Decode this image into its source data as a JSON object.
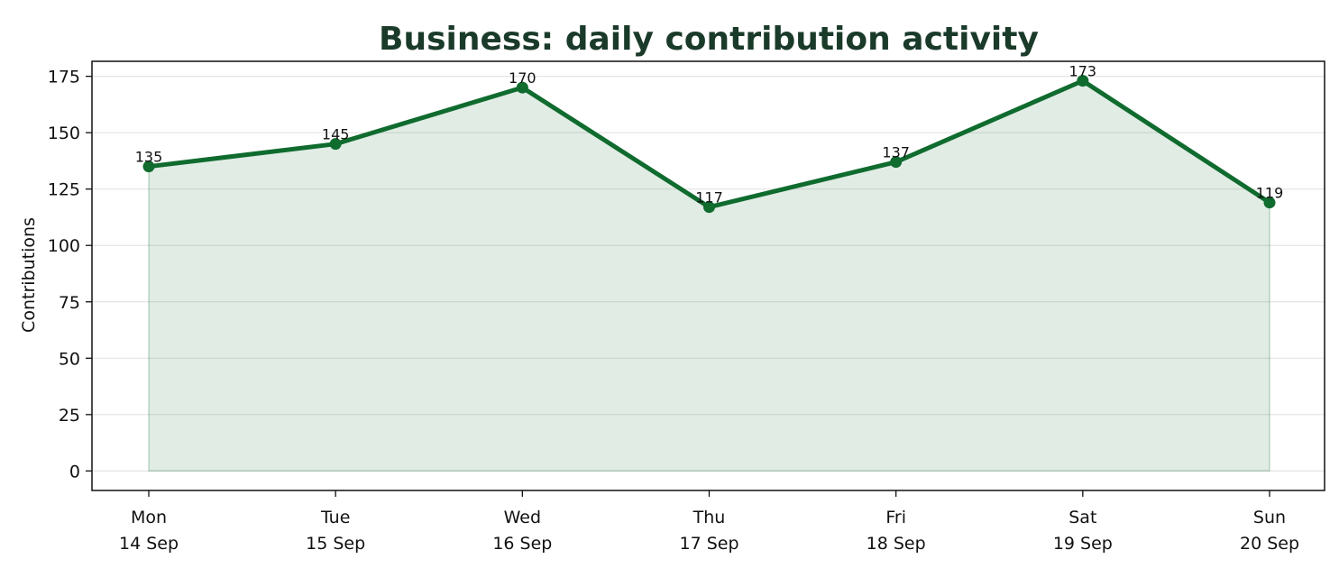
{
  "chart_data": {
    "type": "area",
    "title": "Business: daily contribution activity",
    "xlabel": "",
    "ylabel": "Contributions",
    "categories": [
      [
        "Mon",
        "14 Sep"
      ],
      [
        "Tue",
        "15 Sep"
      ],
      [
        "Wed",
        "16 Sep"
      ],
      [
        "Thu",
        "17 Sep"
      ],
      [
        "Fri",
        "18 Sep"
      ],
      [
        "Sat",
        "19 Sep"
      ],
      [
        "Sun",
        "20 Sep"
      ]
    ],
    "series": [
      {
        "values": [
          135,
          145,
          170,
          117,
          137,
          173,
          119
        ]
      }
    ],
    "ylim": [
      -8.65,
      181.65
    ],
    "yticks": [
      0,
      25,
      50,
      75,
      100,
      125,
      150,
      175
    ],
    "grid": "horizontal",
    "legend": "none",
    "data_labels": true
  },
  "colors": {
    "line": "#0f6b2e",
    "fill": "#0f6b2e",
    "title": "#1a3a2a",
    "grid": "#e4e4e4",
    "axis": "#111111"
  }
}
